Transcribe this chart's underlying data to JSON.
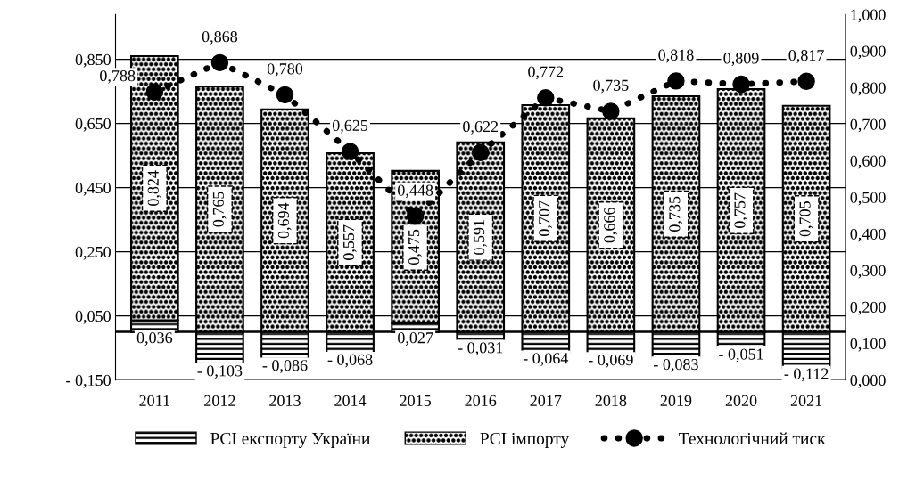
{
  "chart_data": {
    "type": "bar",
    "stacked": true,
    "categories": [
      "2011",
      "2012",
      "2013",
      "2014",
      "2015",
      "2016",
      "2017",
      "2018",
      "2019",
      "2020",
      "2021"
    ],
    "series": [
      {
        "name": "PCI експорту України",
        "color": "#000000",
        "values": [
          0.036,
          -0.103,
          -0.086,
          -0.068,
          0.027,
          -0.031,
          -0.064,
          -0.069,
          -0.083,
          -0.051,
          -0.112
        ],
        "value_labels": [
          "0,036",
          "- 0,103",
          "- 0,086",
          "- 0,068",
          "0,027",
          "- 0,031",
          "- 0,064",
          "- 0,069",
          "- 0,083",
          "- 0,051",
          "- 0,112"
        ]
      },
      {
        "name": "PCI імпорту",
        "color": "#000000",
        "values": [
          0.824,
          0.765,
          0.694,
          0.557,
          0.475,
          0.591,
          0.707,
          0.666,
          0.735,
          0.757,
          0.705
        ],
        "value_labels": [
          "0,824",
          "0,765",
          "0,694",
          "0,557",
          "0,475",
          "0,591",
          "0,707",
          "0,666",
          "0,735",
          "0,757",
          "0,705"
        ]
      },
      {
        "name": "Технологічний тиск",
        "type": "line",
        "axis": "y2",
        "color": "#000000",
        "marker": "circle",
        "line_style": "dotted",
        "values": [
          0.788,
          0.868,
          0.78,
          0.625,
          0.448,
          0.622,
          0.772,
          0.735,
          0.818,
          0.809,
          0.817
        ],
        "value_labels": [
          "0,788",
          "0,868",
          "0,780",
          "0,625",
          "0,448",
          "0,622",
          "0,772",
          "0,735",
          "0,818",
          "0,809",
          "0,817"
        ]
      }
    ],
    "ylim": [
      -0.15,
      0.99
    ],
    "yticks": [
      {
        "value": -0.15,
        "label": "- 0,150"
      },
      {
        "value": 0.05,
        "label": "0,050"
      },
      {
        "value": 0.25,
        "label": "0,250"
      },
      {
        "value": 0.45,
        "label": "0,450"
      },
      {
        "value": 0.65,
        "label": "0,650"
      },
      {
        "value": 0.85,
        "label": "0,850"
      }
    ],
    "y2lim": [
      0,
      1.0
    ],
    "y2ticks": [
      {
        "value": 0,
        "label": "0,000"
      },
      {
        "value": 0.1,
        "label": "0,100"
      },
      {
        "value": 0.2,
        "label": "0,200"
      },
      {
        "value": 0.3,
        "label": "0,300"
      },
      {
        "value": 0.4,
        "label": "0,400"
      },
      {
        "value": 0.5,
        "label": "0,500"
      },
      {
        "value": 0.6,
        "label": "0,600"
      },
      {
        "value": 0.7,
        "label": "0,700"
      },
      {
        "value": 0.8,
        "label": "0,800"
      },
      {
        "value": 0.9,
        "label": "0,900"
      },
      {
        "value": 1.0,
        "label": "1,000"
      }
    ],
    "grid": "y",
    "legend": "bottom"
  }
}
